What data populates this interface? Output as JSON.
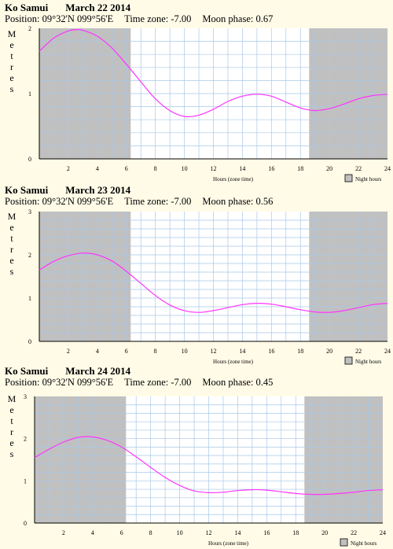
{
  "legend_label": "Night hours",
  "y_axis_label": "Metres",
  "x_axis_label": "Hours (zone time)",
  "colors": {
    "curve": "#ff33ff",
    "night": "#c0c0c0",
    "grid": "#a8c8e8",
    "background": "#fffbe7"
  },
  "panels": [
    {
      "location": "Ko Samui",
      "date": "March 22 2014",
      "position": "Position: 09°32'N 099°56'E",
      "timezone": "Time zone:  -7.00",
      "moon": "Moon phase: 0.67"
    },
    {
      "location": "Ko Samui",
      "date": "March 23 2014",
      "position": "Position: 09°32'N 099°56'E",
      "timezone": "Time zone:  -7.00",
      "moon": "Moon phase: 0.56"
    },
    {
      "location": "Ko Samui",
      "date": "March 24 2014",
      "position": "Position: 09°32'N 099°56'E",
      "timezone": "Time zone:  -7.00",
      "moon": "Moon phase: 0.45"
    }
  ],
  "chart_data": [
    {
      "type": "line",
      "title": "Ko Samui March 22 2014",
      "xlabel": "Hours (zone time)",
      "ylabel": "Metres",
      "xlim": [
        0,
        24
      ],
      "ylim": [
        0,
        2
      ],
      "x_ticks": [
        2,
        4,
        6,
        8,
        10,
        12,
        14,
        16,
        18,
        20,
        22,
        24
      ],
      "y_ticks": [
        0,
        1,
        2
      ],
      "night": [
        [
          0,
          6.3
        ],
        [
          18.6,
          24
        ]
      ],
      "grid": true,
      "legend": "bottom-right",
      "series": [
        {
          "x": [
            0,
            1,
            2,
            2.6,
            3,
            4,
            5,
            6,
            7,
            8,
            9,
            10,
            11,
            12,
            13,
            14,
            15,
            16,
            17,
            18,
            19,
            20,
            21,
            22,
            23,
            24
          ],
          "y": [
            1.65,
            1.85,
            1.96,
            1.98,
            1.97,
            1.88,
            1.7,
            1.45,
            1.18,
            0.92,
            0.74,
            0.65,
            0.67,
            0.76,
            0.88,
            0.96,
            0.99,
            0.96,
            0.87,
            0.78,
            0.74,
            0.77,
            0.84,
            0.92,
            0.97,
            0.99
          ]
        }
      ]
    },
    {
      "type": "line",
      "title": "Ko Samui March 23 2014",
      "xlabel": "Hours (zone time)",
      "ylabel": "Metres",
      "xlim": [
        0,
        24
      ],
      "ylim": [
        0,
        3
      ],
      "x_ticks": [
        2,
        4,
        6,
        8,
        10,
        12,
        14,
        16,
        18,
        20,
        22,
        24
      ],
      "y_ticks": [
        0,
        1,
        2,
        3
      ],
      "night": [
        [
          0,
          6.3
        ],
        [
          18.6,
          24
        ]
      ],
      "grid": true,
      "legend": "bottom-right",
      "series": [
        {
          "x": [
            0,
            1,
            2,
            3,
            4,
            5,
            6,
            7,
            8,
            9,
            10,
            11,
            12,
            13,
            14,
            15,
            16,
            17,
            18,
            19,
            20,
            21,
            22,
            23,
            24
          ],
          "y": [
            1.65,
            1.85,
            1.98,
            2.04,
            2.0,
            1.86,
            1.62,
            1.34,
            1.06,
            0.84,
            0.71,
            0.67,
            0.71,
            0.78,
            0.85,
            0.88,
            0.86,
            0.8,
            0.73,
            0.68,
            0.67,
            0.71,
            0.78,
            0.85,
            0.88
          ]
        }
      ]
    },
    {
      "type": "line",
      "title": "Ko Samui March 24 2014",
      "xlabel": "Hours (zone time)",
      "ylabel": "Metres",
      "xlim": [
        0,
        24
      ],
      "ylim": [
        0,
        3
      ],
      "x_ticks": [
        2,
        4,
        6,
        8,
        10,
        12,
        14,
        16,
        18,
        20,
        22,
        24
      ],
      "y_ticks": [
        0,
        1,
        2,
        3
      ],
      "night": [
        [
          0,
          6.3
        ],
        [
          18.6,
          24
        ]
      ],
      "grid": true,
      "legend": "bottom-right",
      "series": [
        {
          "x": [
            0,
            1,
            2,
            3,
            4,
            5,
            6,
            7,
            8,
            9,
            10,
            11,
            12,
            13,
            14,
            15,
            16,
            17,
            18,
            19,
            20,
            21,
            22,
            23,
            24
          ],
          "y": [
            1.55,
            1.75,
            1.92,
            2.03,
            2.04,
            1.96,
            1.8,
            1.57,
            1.32,
            1.08,
            0.89,
            0.76,
            0.72,
            0.73,
            0.77,
            0.79,
            0.78,
            0.74,
            0.7,
            0.68,
            0.68,
            0.7,
            0.73,
            0.77,
            0.79
          ]
        }
      ]
    }
  ]
}
